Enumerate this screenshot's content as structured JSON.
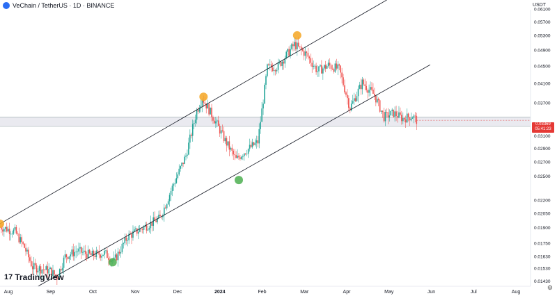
{
  "header": {
    "title": "VeChain / TetherUS · 1D · BINANCE",
    "unit": "USDT"
  },
  "brand": {
    "name": "TradingView",
    "mark": "17"
  },
  "price_tag": {
    "price": "0.03369",
    "countdown": "05:41:23"
  },
  "colors": {
    "up": "#26a69a",
    "down": "#ef5350",
    "band": "#d8d8e4",
    "orange": "#f5a623",
    "green": "#4caf50",
    "tag": "#e53935"
  },
  "icons": {
    "logo": "vechain-logo-icon",
    "settings": "gear-icon"
  },
  "chart_data": {
    "type": "candlestick",
    "symbol": "VeChain / TetherUS",
    "interval": "1D",
    "exchange": "BINANCE",
    "y_scale": "log",
    "y_ticks": [
      "0.06100",
      "0.05700",
      "0.05300",
      "0.04900",
      "0.04500",
      "0.04100",
      "0.03700",
      "0.03100",
      "0.02900",
      "0.02700",
      "0.02500",
      "0.02200",
      "0.02050",
      "0.01900",
      "0.01750",
      "0.01630",
      "0.01530",
      "0.01430"
    ],
    "x_ticks": [
      "Aug",
      "Sep",
      "Oct",
      "Nov",
      "Dec",
      "2024",
      "Feb",
      "Mar",
      "Apr",
      "May",
      "Jun",
      "Jul",
      "Aug"
    ],
    "x_range": [
      "2023-07-30",
      "2024-08-24"
    ],
    "y_range": [
      0.0139,
      0.064
    ],
    "current_price": 0.03369,
    "support_zone": [
      0.0326,
      0.0343
    ],
    "close_path": [
      [
        "2023-07-30",
        0.0191
      ],
      [
        "2023-08-10",
        0.0186
      ],
      [
        "2023-08-17",
        0.0171
      ],
      [
        "2023-08-23",
        0.0154
      ],
      [
        "2023-09-05",
        0.0151
      ],
      [
        "2023-09-10",
        0.0146
      ],
      [
        "2023-09-16",
        0.0163
      ],
      [
        "2023-09-25",
        0.0168
      ],
      [
        "2023-10-05",
        0.0164
      ],
      [
        "2023-10-15",
        0.0166
      ],
      [
        "2023-10-22",
        0.0159
      ],
      [
        "2023-11-01",
        0.0181
      ],
      [
        "2023-11-15",
        0.0192
      ],
      [
        "2023-11-25",
        0.02
      ],
      [
        "2023-12-05",
        0.024
      ],
      [
        "2023-12-14",
        0.0279
      ],
      [
        "2023-12-22",
        0.0354
      ],
      [
        "2023-12-26",
        0.038
      ],
      [
        "2024-01-05",
        0.0334
      ],
      [
        "2024-01-12",
        0.0302
      ],
      [
        "2024-01-20",
        0.0273
      ],
      [
        "2024-01-25",
        0.0283
      ],
      [
        "2024-02-05",
        0.03
      ],
      [
        "2024-02-12",
        0.0445
      ],
      [
        "2024-02-20",
        0.045
      ],
      [
        "2024-03-03",
        0.0505
      ],
      [
        "2024-03-12",
        0.0478
      ],
      [
        "2024-03-20",
        0.0438
      ],
      [
        "2024-03-28",
        0.0452
      ],
      [
        "2024-04-05",
        0.0442
      ],
      [
        "2024-04-13",
        0.036
      ],
      [
        "2024-04-22",
        0.0412
      ],
      [
        "2024-05-01",
        0.0385
      ],
      [
        "2024-05-08",
        0.0343
      ],
      [
        "2024-05-15",
        0.035
      ],
      [
        "2024-05-22",
        0.034
      ],
      [
        "2024-05-29",
        0.0345
      ],
      [
        "2024-06-01",
        0.0337
      ]
    ],
    "channel_lines": [
      {
        "name": "upper",
        "from": [
          "2023-07-30",
          0.0194
        ],
        "to": [
          "2024-05-10",
          0.064
        ]
      },
      {
        "name": "lower",
        "from": [
          "2023-08-27",
          0.0139
        ],
        "to": [
          "2024-06-11",
          0.0453
        ]
      }
    ],
    "touch_markers": [
      {
        "date": "2023-07-30",
        "price": 0.0194,
        "color": "orange"
      },
      {
        "date": "2023-10-21",
        "price": 0.0158,
        "color": "green"
      },
      {
        "date": "2023-12-27",
        "price": 0.0382,
        "color": "orange"
      },
      {
        "date": "2024-01-22",
        "price": 0.0245,
        "color": "green"
      },
      {
        "date": "2024-03-05",
        "price": 0.053,
        "color": "orange"
      }
    ]
  }
}
